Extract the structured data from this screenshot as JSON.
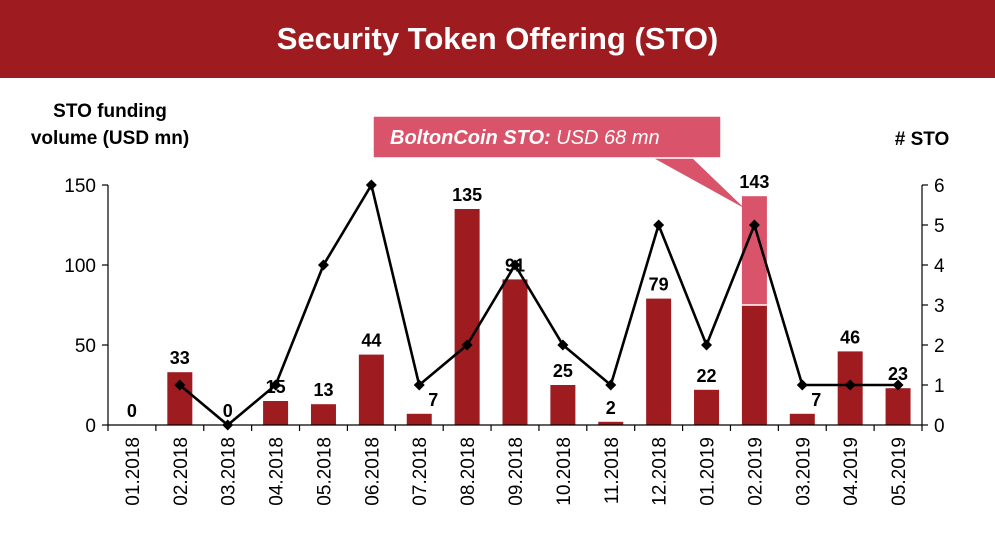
{
  "title": "Security Token Offering (STO)",
  "chart_data": {
    "type": "bar+line",
    "title": "Security Token Offering (STO)",
    "categories": [
      "01.2018",
      "02.2018",
      "03.2018",
      "04.2018",
      "05.2018",
      "06.2018",
      "07.2018",
      "08.2018",
      "09.2018",
      "10.2018",
      "11.2018",
      "12.2018",
      "01.2019",
      "02.2019",
      "03.2019",
      "04.2019",
      "05.2019"
    ],
    "series": [
      {
        "name": "STO funding volume (USD mn)",
        "type": "bar",
        "axis": "left",
        "values": [
          0,
          33,
          0,
          15,
          13,
          44,
          7,
          135,
          91,
          25,
          2,
          79,
          22,
          143,
          7,
          46,
          23
        ]
      },
      {
        "name": "# STO",
        "type": "line",
        "axis": "right",
        "values": [
          null,
          1,
          0,
          1,
          4,
          6,
          1,
          2,
          4,
          2,
          1,
          5,
          2,
          5,
          1,
          1,
          1
        ]
      }
    ],
    "highlight": {
      "category": "02.2019",
      "value": 68
    },
    "ylabel_left": "STO funding\nvolume (USD mn)",
    "ylabel_right": "# STO",
    "ylim_left": [
      0,
      150
    ],
    "yticks_left": [
      "0",
      "50",
      "100",
      "150"
    ],
    "ylim_right": [
      0,
      6
    ],
    "yticks_right": [
      "0",
      "1",
      "2",
      "3",
      "4",
      "5",
      "6"
    ],
    "callout": {
      "bold": "BoltonCoin STO:",
      "text": " USD 68 mn"
    },
    "colors": {
      "bar": "#9E1B20",
      "highlight": "#D9546A",
      "banner": "#9E1B20",
      "line": "#000000"
    }
  }
}
